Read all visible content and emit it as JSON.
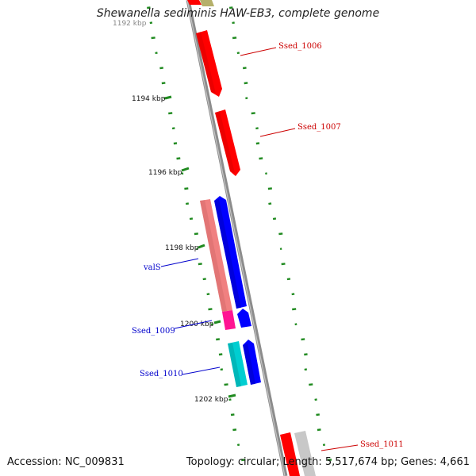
{
  "title": "Shewanella sediminis HAW-EB3, complete genome",
  "footer": {
    "accession": "Accession: NC_009831",
    "summary": "Topology: circular; Length: 5,517,674 bp; Genes: 4,661"
  },
  "scale_labels": [
    "1192 kbp",
    "1194 kbp",
    "1196 kbp",
    "1198 kbp",
    "1200 kbp",
    "1202 kbp"
  ],
  "gene_labels": {
    "ssed_1006": "Ssed_1006",
    "ssed_1007": "Ssed_1007",
    "vals": "valS",
    "ssed_1009": "Ssed_1009",
    "ssed_1010": "Ssed_1010",
    "ssed_1011": "Ssed_1011"
  },
  "colors": {
    "backbone": "#8c8c8c",
    "gc_ticks": "#1f8a1f",
    "red_gene": "#ff0000",
    "pink_gene": "#f08080",
    "magenta_gene": "#ff1493",
    "blue_gene": "#0000ff",
    "cyan_gene": "#00ced1",
    "gray_gene": "#c8c8c8",
    "olive_gene": "#b5b06a",
    "red_label": "#cc0000",
    "blue_label": "#0000cc"
  }
}
